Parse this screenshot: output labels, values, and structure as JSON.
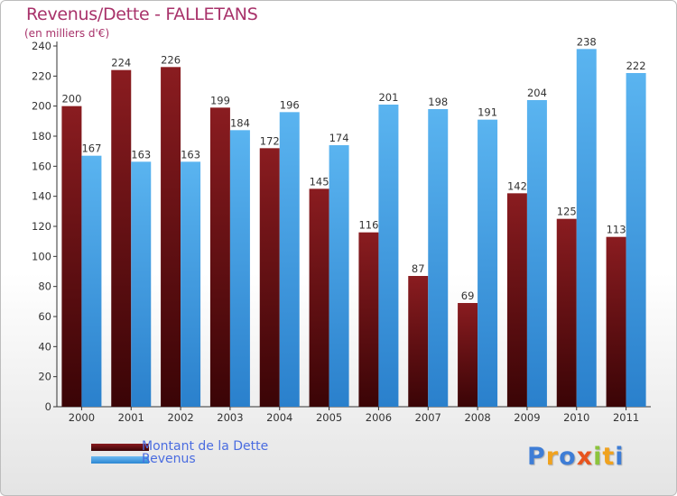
{
  "header": {
    "title": "Revenus/Dette - FALLETANS",
    "subtitle": "(en milliers d'€)"
  },
  "legend": {
    "items": [
      {
        "label": "Montant de la Dette",
        "color": "#6b0f12"
      },
      {
        "label": "Revenus",
        "color": "#4aa3e8"
      }
    ]
  },
  "logo": {
    "text": "Proxiti",
    "letters": [
      {
        "char": "P",
        "color": "#3e7dd6"
      },
      {
        "char": "r",
        "color": "#f0a21e"
      },
      {
        "char": "o",
        "color": "#3e7dd6"
      },
      {
        "char": "x",
        "color": "#e8541e"
      },
      {
        "char": "i",
        "color": "#8cc43c"
      },
      {
        "char": "t",
        "color": "#f0a21e"
      },
      {
        "char": "i",
        "color": "#3e7dd6"
      }
    ]
  },
  "chart_data": {
    "type": "bar",
    "title": "Revenus/Dette - FALLETANS",
    "subtitle": "(en milliers d'€)",
    "categories": [
      "2000",
      "2001",
      "2002",
      "2003",
      "2004",
      "2005",
      "2006",
      "2007",
      "2008",
      "2009",
      "2010",
      "2011"
    ],
    "series": [
      {
        "name": "Montant de la Dette",
        "color": "#6b0f12",
        "values": [
          200,
          224,
          226,
          199,
          172,
          145,
          116,
          87,
          69,
          142,
          125,
          113
        ]
      },
      {
        "name": "Revenus",
        "color": "#4aa3e8",
        "values": [
          167,
          163,
          163,
          184,
          196,
          174,
          201,
          198,
          191,
          204,
          238,
          222
        ]
      }
    ],
    "ylim": [
      0,
      240
    ],
    "yticks": [
      0,
      20,
      40,
      60,
      80,
      100,
      120,
      140,
      160,
      180,
      200,
      220,
      240
    ],
    "grid": false,
    "legend_position": "bottom-left"
  }
}
